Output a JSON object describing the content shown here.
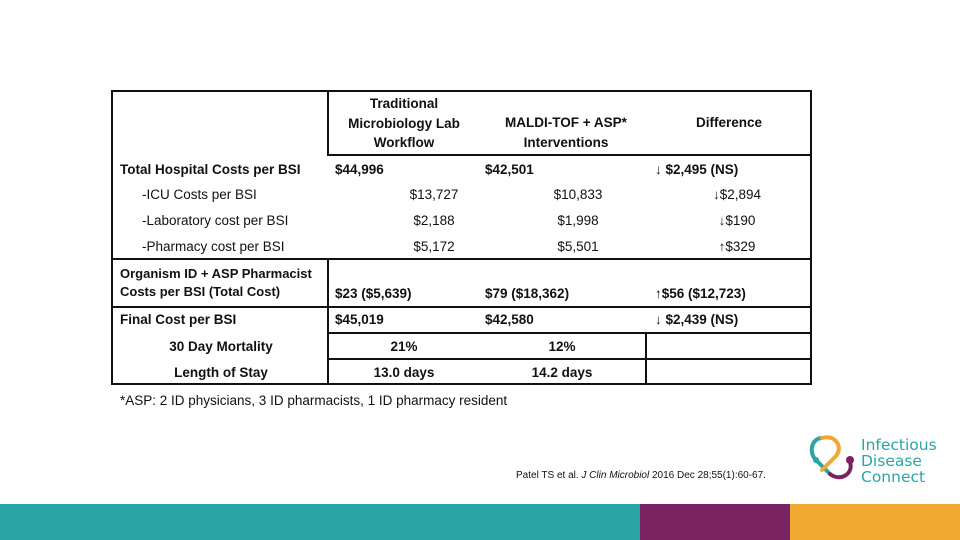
{
  "table": {
    "headers": {
      "traditional": "Traditional Microbiology Lab Workflow",
      "maldi": "MALDI-TOF + ASP* Interventions",
      "difference": "Difference"
    },
    "rows": [
      {
        "label": "Total Hospital Costs per BSI",
        "trad": "$44,996",
        "maldi": "$42,501",
        "diff": "↓ $2,495 (NS)"
      },
      {
        "label": "-ICU Costs per BSI",
        "trad": "$13,727",
        "maldi": "$10,833",
        "diff": "↓$2,894"
      },
      {
        "label": "-Laboratory cost per BSI",
        "trad": "$2,188",
        "maldi": "$1,998",
        "diff": "↓$190"
      },
      {
        "label": "-Pharmacy cost per BSI",
        "trad": "$5,172",
        "maldi": "$5,501",
        "diff": "↑$329"
      },
      {
        "label": "Organism ID + ASP Pharmacist Costs per BSI (Total Cost)",
        "trad": "$23 ($5,639)",
        "maldi": "$79 ($18,362)",
        "diff": "↑$56 ($12,723)"
      },
      {
        "label": "Final Cost per BSI",
        "trad": "$45,019",
        "maldi": "$42,580",
        "diff": "↓ $2,439 (NS)"
      },
      {
        "label": "30 Day Mortality",
        "trad": "21%",
        "maldi": "12%",
        "diff": ""
      },
      {
        "label": "Length of Stay",
        "trad": "13.0 days",
        "maldi": "14.2 days",
        "diff": ""
      }
    ]
  },
  "footnote": "*ASP: 2 ID physicians, 3 ID pharmacists, 1 ID pharmacy resident",
  "citation": {
    "authors": "Patel TS et al. ",
    "journal": "J Clin Microbiol",
    "details": " 2016 Dec 28;55(1):60-67."
  },
  "logo": {
    "line1": "Infectious",
    "line2": "Disease",
    "line3": "Connect",
    "colors": {
      "teal": "#2aa5a5",
      "purple": "#7a2361",
      "orange": "#f0a830"
    }
  },
  "footer_colors": [
    "#2aa5a5",
    "#7a2361",
    "#f0a830"
  ]
}
